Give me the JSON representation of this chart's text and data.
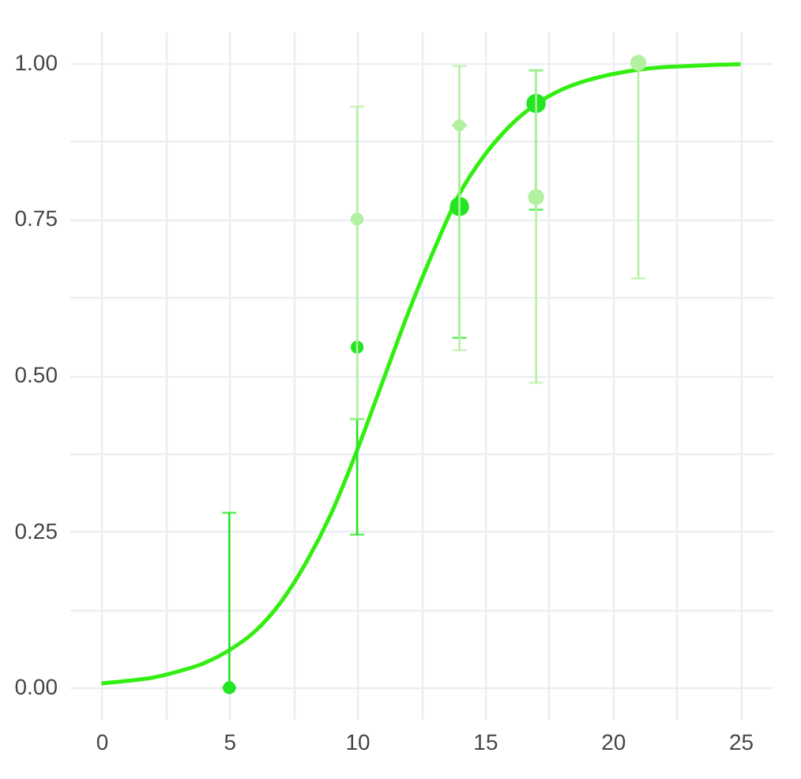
{
  "chart_data": {
    "type": "bubble",
    "xlim": [
      -1.25,
      26.25
    ],
    "xticks": [
      0,
      {
        "value": 2.5,
        "label": null
      },
      5,
      {
        "value": 7.5,
        "label": null
      },
      10,
      {
        "value": 12.5,
        "label": null
      },
      15,
      {
        "value": 17.5,
        "label": null
      },
      20,
      {
        "value": 22.5,
        "label": null
      },
      25
    ],
    "ylim": [
      -0.05,
      1.05
    ],
    "yticks": [
      {
        "value": 0,
        "label": "0.00"
      },
      {
        "value": 0.125,
        "label": null
      },
      {
        "value": 0.25,
        "label": "0.25"
      },
      {
        "value": 0.375,
        "label": null
      },
      {
        "value": 0.5,
        "label": "0.50"
      },
      {
        "value": 0.625,
        "label": null
      },
      {
        "value": 0.75,
        "label": "0.75"
      },
      {
        "value": 0.875,
        "label": null
      },
      {
        "value": 1,
        "label": "1.00"
      }
    ],
    "grid": true,
    "series": [
      {
        "type": "line",
        "color": "#33ee11",
        "x": [
          0,
          1,
          2,
          3,
          4,
          5,
          6,
          7,
          8,
          9,
          10,
          11,
          12,
          13,
          14,
          15,
          16,
          17,
          18,
          19,
          20,
          21,
          22,
          23,
          24,
          25
        ],
        "values": [
          0.007,
          0.011,
          0.016,
          0.026,
          0.039,
          0.06,
          0.09,
          0.136,
          0.2,
          0.28,
          0.38,
          0.49,
          0.6,
          0.7,
          0.79,
          0.853,
          0.9,
          0.934,
          0.957,
          0.972,
          0.982,
          0.989,
          0.993,
          0.995,
          0.997,
          0.998
        ]
      },
      {
        "color": "#22e622",
        "x": [
          5,
          10,
          14,
          17
        ],
        "values": [
          0.0,
          0.545,
          0.77,
          0.935
        ],
        "sizes": [
          0.45,
          0.45,
          1,
          1
        ],
        "errors": [
          [
            0,
            0.28
          ],
          [
            0.245,
            0.43
          ],
          [
            0.56,
            0.9
          ],
          [
            0.765,
            0.988
          ]
        ]
      },
      {
        "color": "#b4f0a2",
        "x": [
          10,
          14,
          17,
          21
        ],
        "values": [
          0.75,
          0.9,
          0.785,
          1.0
        ],
        "sizes": [
          0.45,
          0.4,
          0.7,
          0.7
        ],
        "errors": [
          [
            0.43,
            0.93
          ],
          [
            0.54,
            0.995
          ],
          [
            0.488,
            0.988
          ],
          [
            0.655,
            1.0
          ]
        ]
      }
    ]
  }
}
